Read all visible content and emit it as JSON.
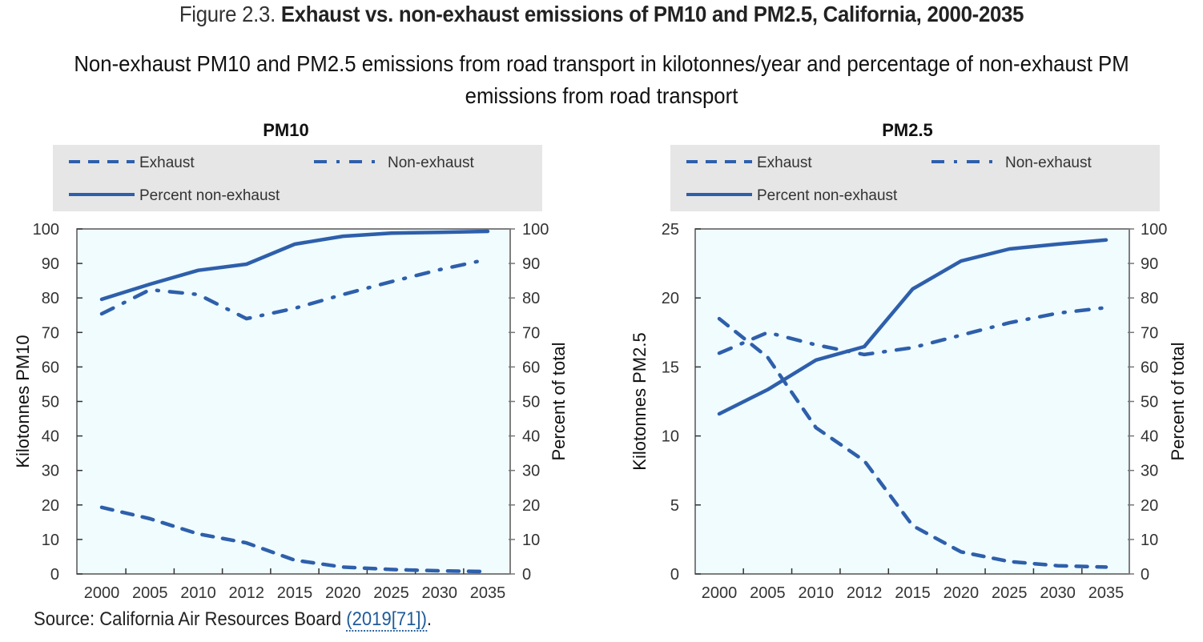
{
  "figure": {
    "label": "Figure 2.3.",
    "title": "Exhaust vs. non-exhaust emissions of PM10 and PM2.5, California, 2000-2035",
    "subtitle": "Non-exhaust PM10 and PM2.5 emissions from road transport in kilotonnes/year and percentage of non-exhaust PM emissions from road transport"
  },
  "source": {
    "prefix": "Source: California Air Resources Board ",
    "link_text": "(2019[71])",
    "suffix": "."
  },
  "colors": {
    "line": "#2e5fab",
    "plot_bg": "#f0fcfe",
    "legend_bg": "#e6e6e6",
    "link": "#1f5c99"
  },
  "chart_data": [
    {
      "type": "line",
      "title": "PM10",
      "categories": [
        "2000",
        "2005",
        "2010",
        "2012",
        "2015",
        "2020",
        "2025",
        "2030",
        "2035"
      ],
      "ylabel": "Kilotonnes PM10",
      "y2label": "Percent of total",
      "ylim": [
        0,
        100
      ],
      "y2lim": [
        0,
        100
      ],
      "yticks": [
        0,
        10,
        20,
        30,
        40,
        50,
        60,
        70,
        80,
        90,
        100
      ],
      "y2ticks": [
        0,
        10,
        20,
        30,
        40,
        50,
        60,
        70,
        80,
        90,
        100
      ],
      "legend_position": "top",
      "grid": false,
      "series": [
        {
          "name": "Exhaust",
          "style": "dashed",
          "axis": "left",
          "values": [
            19.3,
            16.0,
            11.6,
            9.0,
            4.0,
            2.0,
            1.3,
            0.9,
            0.7
          ]
        },
        {
          "name": "Non-exhaust",
          "style": "dashdot",
          "axis": "left",
          "values": [
            75.4,
            82.4,
            81.0,
            74.0,
            77.0,
            81.0,
            84.7,
            88.2,
            91.2
          ]
        },
        {
          "name": "Percent non-exhaust",
          "style": "solid",
          "axis": "right",
          "values": [
            79.6,
            84.0,
            88.0,
            89.8,
            95.6,
            97.9,
            98.8,
            99.0,
            99.3
          ]
        }
      ]
    },
    {
      "type": "line",
      "title": "PM2.5",
      "categories": [
        "2000",
        "2005",
        "2010",
        "2012",
        "2015",
        "2020",
        "2025",
        "2030",
        "2035"
      ],
      "ylabel": "Kilotonnes PM2.5",
      "y2label": "Percent of total",
      "ylim": [
        0,
        25
      ],
      "y2lim": [
        0,
        100
      ],
      "yticks": [
        0,
        5,
        10,
        15,
        20,
        25
      ],
      "y2ticks": [
        0,
        10,
        20,
        30,
        40,
        50,
        60,
        70,
        80,
        90,
        100
      ],
      "legend_position": "top",
      "grid": false,
      "series": [
        {
          "name": "Exhaust",
          "style": "dashed",
          "axis": "left",
          "values": [
            18.5,
            15.7,
            10.6,
            8.2,
            3.5,
            1.6,
            0.9,
            0.6,
            0.5
          ]
        },
        {
          "name": "Non-exhaust",
          "style": "dashdot",
          "axis": "left",
          "values": [
            16.0,
            17.5,
            16.6,
            15.9,
            16.4,
            17.3,
            18.2,
            18.9,
            19.3
          ]
        },
        {
          "name": "Percent non-exhaust",
          "style": "solid",
          "axis": "right",
          "values": [
            46.4,
            53.4,
            62.0,
            65.9,
            82.6,
            90.7,
            94.2,
            95.6,
            96.8
          ]
        }
      ]
    }
  ]
}
